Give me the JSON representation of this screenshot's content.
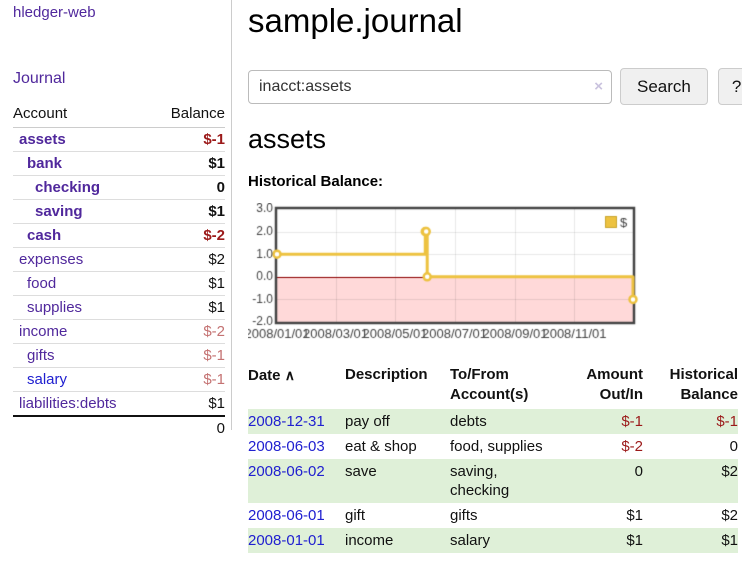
{
  "app": {
    "brand": "hledger-web",
    "nav_journal": "Journal"
  },
  "sidebar": {
    "col_account": "Account",
    "col_balance": "Balance",
    "accounts": [
      {
        "label": "assets",
        "balance": "$-1",
        "depth": 1,
        "bold": true,
        "neg": "strong",
        "link_color": "purple"
      },
      {
        "label": "bank",
        "balance": "$1",
        "depth": 2,
        "bold": true,
        "neg": "none",
        "link_color": "purple"
      },
      {
        "label": "checking",
        "balance": "0",
        "depth": 3,
        "bold": true,
        "neg": "none",
        "link_color": "purple"
      },
      {
        "label": "saving",
        "balance": "$1",
        "depth": 3,
        "bold": true,
        "neg": "none",
        "link_color": "purple"
      },
      {
        "label": "cash",
        "balance": "$-2",
        "depth": 2,
        "bold": true,
        "neg": "strong",
        "link_color": "purple"
      },
      {
        "label": "expenses",
        "balance": "$2",
        "depth": 1,
        "bold": false,
        "neg": "none",
        "link_color": "purple"
      },
      {
        "label": "food",
        "balance": "$1",
        "depth": 2,
        "bold": false,
        "neg": "none",
        "link_color": "purple"
      },
      {
        "label": "supplies",
        "balance": "$1",
        "depth": 2,
        "bold": false,
        "neg": "none",
        "link_color": "purple"
      },
      {
        "label": "income",
        "balance": "$-2",
        "depth": 1,
        "bold": false,
        "neg": "soft",
        "link_color": "purple"
      },
      {
        "label": "gifts",
        "balance": "$-1",
        "depth": 2,
        "bold": false,
        "neg": "soft",
        "link_color": "purple"
      },
      {
        "label": "salary",
        "balance": "$-1",
        "depth": 2,
        "bold": false,
        "neg": "soft",
        "link_color": "blue"
      },
      {
        "label": "liabilities:debts",
        "balance": "$1",
        "depth": 1,
        "bold": false,
        "neg": "none",
        "link_color": "purple"
      }
    ],
    "total": "0"
  },
  "header": {
    "title": "sample.journal"
  },
  "search": {
    "value": "inacct:assets",
    "clear_icon": "×",
    "button": "Search",
    "help_button": "?"
  },
  "account_page": {
    "heading": "assets",
    "chart_label": "Historical Balance:"
  },
  "chart_data": {
    "type": "line",
    "step": true,
    "title": "Historical Balance",
    "series": [
      {
        "name": "$",
        "color": "#edc240",
        "points": [
          [
            "2008-01-01",
            1
          ],
          [
            "2008-06-01",
            2
          ],
          [
            "2008-06-02",
            2
          ],
          [
            "2008-06-03",
            0
          ],
          [
            "2008-12-31",
            -1
          ]
        ]
      }
    ],
    "xlim": [
      "2008-01-01",
      "2008-12-31"
    ],
    "ylim": [
      -2,
      3
    ],
    "y_ticks": [
      "3.0",
      "2.0",
      "1.0",
      "0.0",
      "-1.0",
      "-2.0"
    ],
    "y_tick_values": [
      3,
      2,
      1,
      0,
      -1,
      -2
    ],
    "x_ticks": [
      "2008/01/01",
      "2008/03/01",
      "2008/05/01",
      "2008/07/01",
      "2008/09/01",
      "2008/11/01"
    ],
    "x_tick_values": [
      "2008-01-01",
      "2008-03-01",
      "2008-05-01",
      "2008-07-01",
      "2008-09-01",
      "2008-11-01"
    ],
    "grid": true,
    "legend_position": "top-right",
    "border_color": "#444444",
    "negative_region_color": "#ffd9d9",
    "zero_line_color": "#8b0000",
    "tick_label_color": "#444444"
  },
  "register": {
    "columns": {
      "date": "Date",
      "sort_icon": "∧",
      "description": "Description",
      "accounts": "To/From Account(s)",
      "amount": "Amount Out/In",
      "balance": "Historical Balance"
    },
    "rows": [
      {
        "date": "2008-12-31",
        "description": "pay off",
        "accounts": "debts",
        "amount": "$-1",
        "amount_neg": true,
        "balance": "$-1",
        "balance_neg": true
      },
      {
        "date": "2008-06-03",
        "description": "eat & shop",
        "accounts": "food, supplies",
        "amount": "$-2",
        "amount_neg": true,
        "balance": "0",
        "balance_neg": false
      },
      {
        "date": "2008-06-02",
        "description": "save",
        "accounts": "saving, checking",
        "amount": "0",
        "amount_neg": false,
        "balance": "$2",
        "balance_neg": false
      },
      {
        "date": "2008-06-01",
        "description": "gift",
        "accounts": "gifts",
        "amount": "$1",
        "amount_neg": false,
        "balance": "$2",
        "balance_neg": false
      },
      {
        "date": "2008-01-01",
        "description": "income",
        "accounts": "salary",
        "amount": "$1",
        "amount_neg": false,
        "balance": "$1",
        "balance_neg": false
      }
    ]
  },
  "colors": {
    "link_purple": "#50289c",
    "link_blue": "#2020d0",
    "negative_strong": "#9b1919",
    "negative_soft": "#c47272",
    "row_stripe_green": "#dff0d8",
    "chart_series_yellow": "#edc240"
  }
}
